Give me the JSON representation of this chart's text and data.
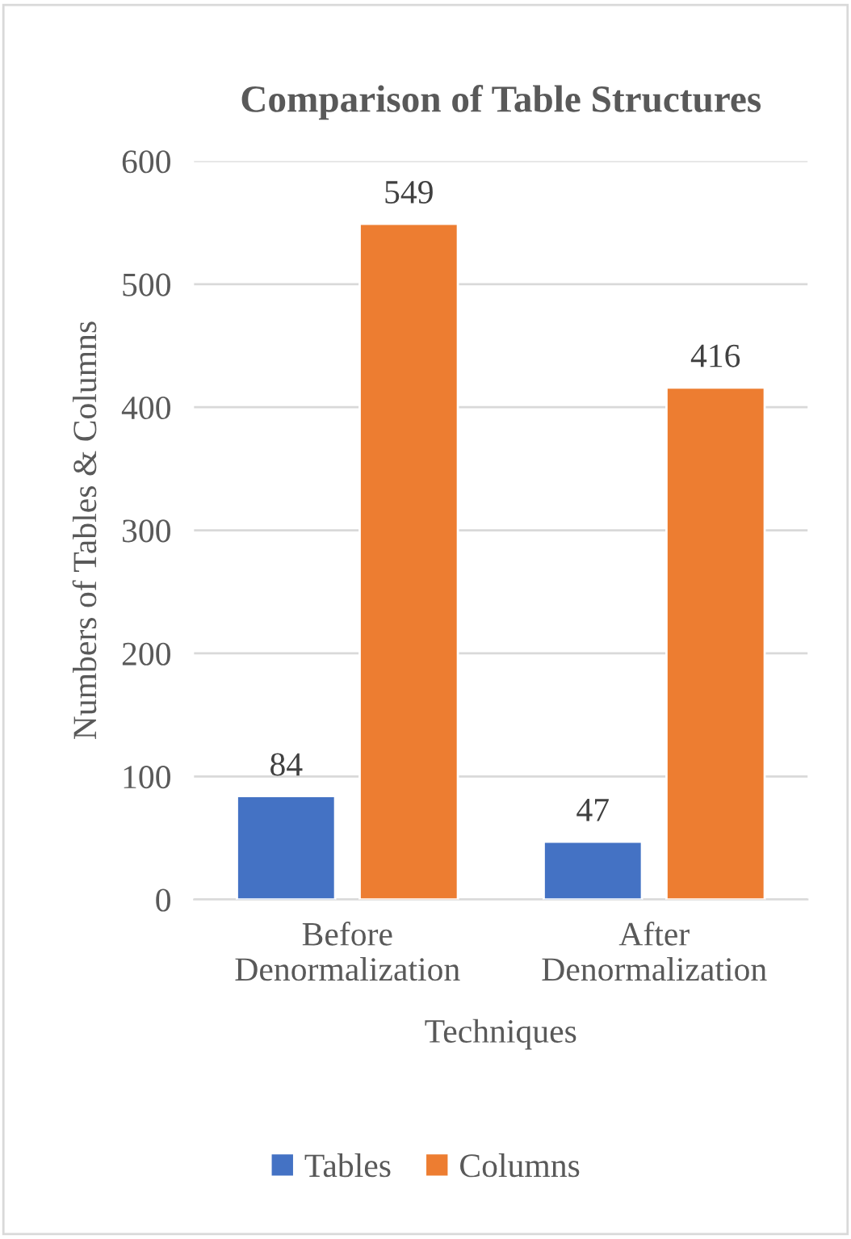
{
  "chart_data": {
    "type": "bar",
    "title": "Comparison of Table Structures",
    "xlabel": "Techniques",
    "ylabel": "Numbers of Tables & Columns",
    "categories": [
      "Before Denormalization",
      "After Denormalization"
    ],
    "series": [
      {
        "name": "Tables",
        "color": "#4472c4",
        "values": [
          84,
          47
        ]
      },
      {
        "name": "Columns",
        "color": "#ed7d31",
        "values": [
          549,
          416
        ]
      }
    ],
    "ylim": [
      0,
      600
    ],
    "yticks": [
      0,
      100,
      200,
      300,
      400,
      500,
      600
    ],
    "grid": "y",
    "legend": "bottom",
    "data_labels": true
  }
}
